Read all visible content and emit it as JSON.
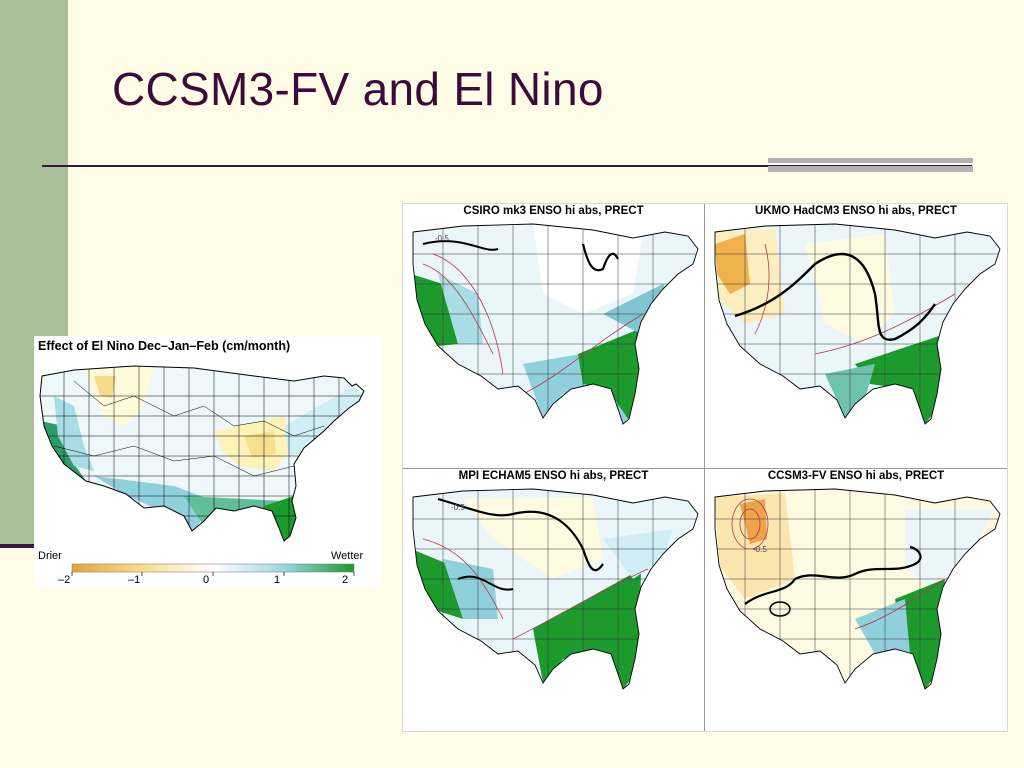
{
  "slide": {
    "title": "CCSM3-FV and El Nino"
  },
  "left_map": {
    "title": "Effect of  El Nino Dec–Jan–Feb (cm/month)",
    "legend": {
      "low_label": "Drier",
      "high_label": "Wetter",
      "ticks": [
        "–2",
        "–1",
        "0",
        "1",
        "2"
      ]
    }
  },
  "grid_maps": [
    {
      "title": "CSIRO mk3 ENSO hi abs, PRECT",
      "contour_label": "-0.5"
    },
    {
      "title": "UKMO HadCM3 ENSO hi abs, PRECT",
      "contour_label": ""
    },
    {
      "title": "MPI ECHAM5 ENSO hi abs, PRECT",
      "contour_label": "-0.5"
    },
    {
      "title": "CCSM3-FV ENSO hi abs, PRECT",
      "contour_label": "-0.5"
    }
  ],
  "colors": {
    "drier": "#e8a23c",
    "wetter": "#1d9a2c",
    "title": "#3b0b3e"
  }
}
